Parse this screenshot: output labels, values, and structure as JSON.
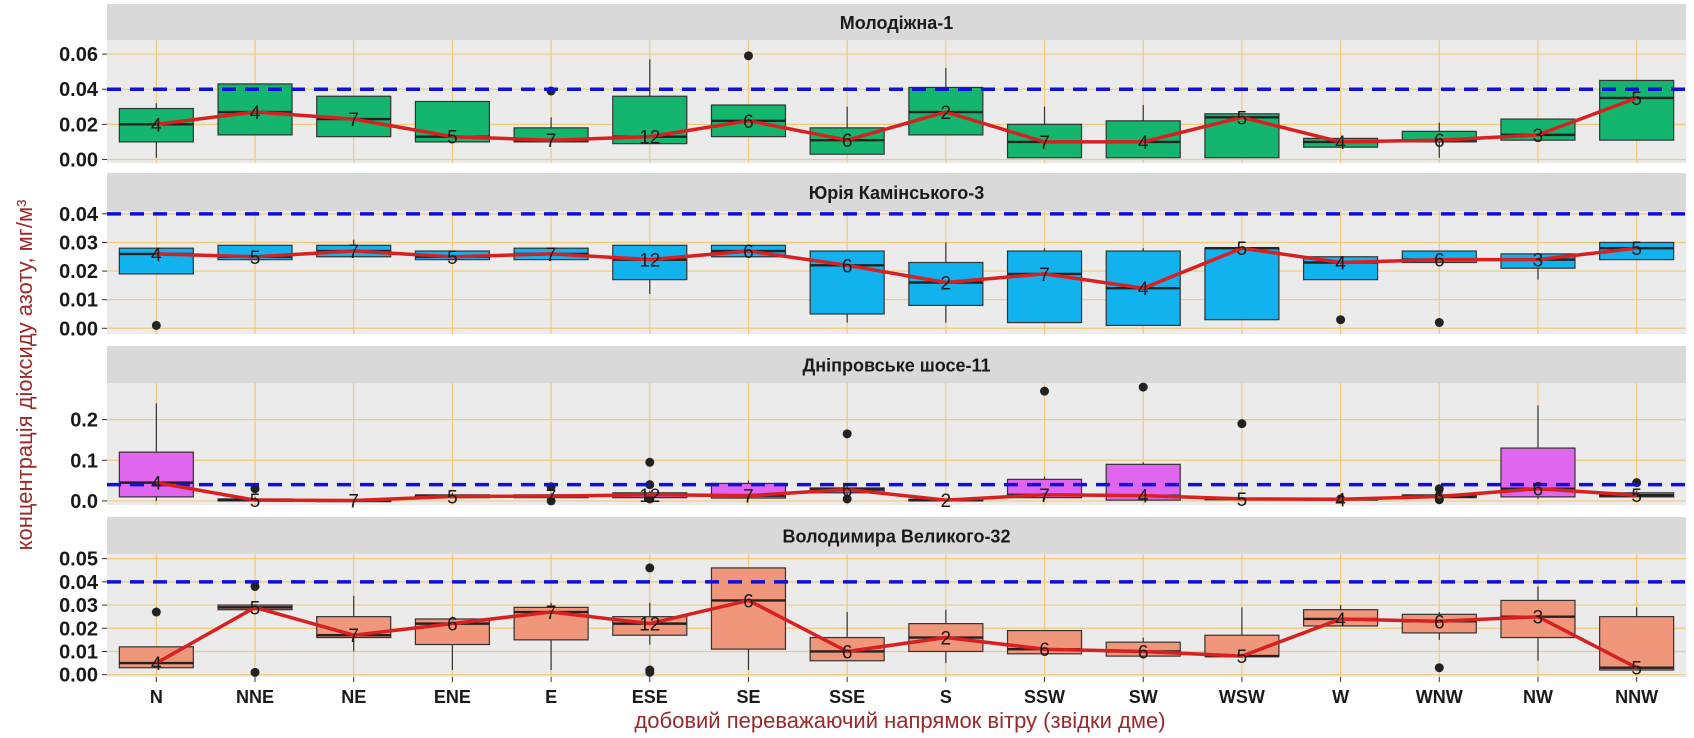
{
  "chart_data": {
    "type": "box",
    "ylabel": "концентрація діоксиду азоту, мг/м³",
    "xlabel": "добовий переважаючий напрямок вітру (звідки дме)",
    "categories": [
      "N",
      "NNE",
      "NE",
      "ENE",
      "E",
      "ESE",
      "SE",
      "SSE",
      "S",
      "SSW",
      "SW",
      "WSW",
      "W",
      "WNW",
      "NW",
      "NNW"
    ],
    "reference_line": 0.04,
    "colors": {
      "line": "#d92020",
      "reference": "#1010d8"
    },
    "panels": [
      {
        "title": "Молодіжна-1",
        "fill": "#13b56f",
        "ylim": [
          -0.002,
          0.068
        ],
        "yticks": [
          "0.00",
          "0.02",
          "0.04",
          "0.06"
        ],
        "counts": [
          "4",
          "4",
          "7",
          "5",
          "7",
          "12",
          "6",
          "6",
          "2",
          "7",
          "4",
          "5",
          "4",
          "6",
          "3",
          "5"
        ],
        "medians": [
          0.02,
          0.027,
          0.023,
          0.013,
          0.011,
          0.013,
          0.022,
          0.011,
          0.027,
          0.01,
          0.01,
          0.024,
          0.01,
          0.011,
          0.014,
          0.035
        ],
        "q1": [
          0.01,
          0.014,
          0.013,
          0.01,
          0.01,
          0.009,
          0.013,
          0.003,
          0.014,
          0.001,
          0.001,
          0.001,
          0.007,
          0.01,
          0.011,
          0.011
        ],
        "q3": [
          0.029,
          0.043,
          0.036,
          0.033,
          0.018,
          0.036,
          0.031,
          0.018,
          0.041,
          0.02,
          0.022,
          0.026,
          0.012,
          0.016,
          0.023,
          0.045
        ],
        "wlo": [
          0.001,
          0.014,
          0.013,
          0.01,
          0.01,
          0.009,
          0.013,
          0.003,
          0.014,
          0.001,
          0.001,
          0.001,
          0.007,
          0.001,
          0.011,
          0.011
        ],
        "whi": [
          0.032,
          0.043,
          0.036,
          0.033,
          0.024,
          0.057,
          0.031,
          0.03,
          0.052,
          0.03,
          0.031,
          0.026,
          0.012,
          0.021,
          0.023,
          0.045
        ],
        "outliers": [
          [],
          [],
          [],
          [],
          [
            0.039
          ],
          [],
          [
            0.059
          ],
          [],
          [],
          [],
          [],
          [],
          [],
          [],
          [],
          []
        ]
      },
      {
        "title": "Юрія Камінського-3",
        "fill": "#12b2ee",
        "ylim": [
          -0.002,
          0.041
        ],
        "yticks": [
          "0.00",
          "0.01",
          "0.02",
          "0.03",
          "0.04"
        ],
        "counts": [
          "4",
          "5",
          "7",
          "5",
          "7",
          "12",
          "6",
          "6",
          "2",
          "7",
          "4",
          "5",
          "4",
          "6",
          "3",
          "5"
        ],
        "medians": [
          0.026,
          0.025,
          0.027,
          0.025,
          0.026,
          0.024,
          0.027,
          0.022,
          0.016,
          0.019,
          0.014,
          0.028,
          0.023,
          0.024,
          0.024,
          0.028
        ],
        "q1": [
          0.019,
          0.024,
          0.025,
          0.024,
          0.024,
          0.017,
          0.025,
          0.005,
          0.008,
          0.002,
          0.001,
          0.003,
          0.017,
          0.023,
          0.021,
          0.024
        ],
        "q3": [
          0.028,
          0.029,
          0.029,
          0.027,
          0.028,
          0.029,
          0.029,
          0.027,
          0.023,
          0.027,
          0.027,
          0.028,
          0.025,
          0.027,
          0.026,
          0.03
        ],
        "wlo": [
          0.019,
          0.024,
          0.025,
          0.024,
          0.024,
          0.012,
          0.025,
          0.002,
          0.002,
          0.002,
          0.001,
          0.003,
          0.017,
          0.023,
          0.017,
          0.024
        ],
        "whi": [
          0.028,
          0.029,
          0.031,
          0.027,
          0.028,
          0.029,
          0.029,
          0.027,
          0.03,
          0.028,
          0.028,
          0.028,
          0.025,
          0.027,
          0.026,
          0.03
        ],
        "outliers": [
          [
            0.001
          ],
          [],
          [],
          [],
          [],
          [],
          [],
          [],
          [],
          [],
          [],
          [],
          [
            0.003
          ],
          [
            0.002
          ],
          [],
          []
        ]
      },
      {
        "title": "Дніпровське шосе-11",
        "fill": "#e066f0",
        "ylim": [
          -0.01,
          0.29
        ],
        "yticks": [
          "0.0",
          "0.1",
          "0.2"
        ],
        "counts": [
          "4",
          "5",
          "7",
          "5",
          "7",
          "12",
          "7",
          "6",
          "2",
          "7",
          "4",
          "5",
          "4",
          "6",
          "6",
          "5"
        ],
        "medians": [
          0.045,
          0.002,
          0.001,
          0.011,
          0.012,
          0.015,
          0.013,
          0.028,
          0.002,
          0.015,
          0.013,
          0.005,
          0.004,
          0.011,
          0.03,
          0.014
        ],
        "q1": [
          0.01,
          0.0,
          0.0,
          0.008,
          0.008,
          0.008,
          0.007,
          0.02,
          0.0,
          0.008,
          0.002,
          0.003,
          0.002,
          0.008,
          0.01,
          0.01
        ],
        "q3": [
          0.12,
          0.005,
          0.002,
          0.015,
          0.015,
          0.02,
          0.043,
          0.032,
          0.004,
          0.053,
          0.09,
          0.007,
          0.006,
          0.015,
          0.13,
          0.02
        ],
        "wlo": [
          0.0,
          0.0,
          0.0,
          0.008,
          0.008,
          0.005,
          0.005,
          0.01,
          0.0,
          0.003,
          0.002,
          0.003,
          0.002,
          0.005,
          0.005,
          0.01
        ],
        "whi": [
          0.24,
          0.01,
          0.004,
          0.02,
          0.02,
          0.025,
          0.05,
          0.04,
          0.006,
          0.06,
          0.095,
          0.008,
          0.008,
          0.02,
          0.235,
          0.025
        ],
        "outliers": [
          [],
          [
            0.03
          ],
          [],
          [],
          [
            0.0,
            0.035
          ],
          [
            0.095,
            0.04,
            0.005
          ],
          [],
          [
            0.165,
            0.005
          ],
          [],
          [
            0.27
          ],
          [
            0.28
          ],
          [
            0.19
          ],
          [
            0.005
          ],
          [
            0.03,
            0.01,
            0.003
          ],
          [],
          [
            0.045
          ]
        ]
      },
      {
        "title": "Володимира Великого-32",
        "fill": "#f0967a",
        "ylim": [
          -0.001,
          0.052
        ],
        "yticks": [
          "0.00",
          "0.01",
          "0.02",
          "0.03",
          "0.04",
          "0.05"
        ],
        "counts": [
          "4",
          "5",
          "7",
          "6",
          "7",
          "12",
          "6",
          "6",
          "2",
          "6",
          "6",
          "5",
          "4",
          "6",
          "3",
          "5"
        ],
        "medians": [
          0.005,
          0.029,
          0.017,
          0.022,
          0.027,
          0.022,
          0.032,
          0.01,
          0.016,
          0.011,
          0.01,
          0.008,
          0.024,
          0.023,
          0.025,
          0.003
        ],
        "q1": [
          0.003,
          0.028,
          0.016,
          0.013,
          0.015,
          0.017,
          0.011,
          0.006,
          0.01,
          0.009,
          0.008,
          0.008,
          0.021,
          0.018,
          0.016,
          0.002
        ],
        "q3": [
          0.012,
          0.03,
          0.025,
          0.024,
          0.029,
          0.025,
          0.046,
          0.016,
          0.022,
          0.019,
          0.014,
          0.017,
          0.028,
          0.026,
          0.032,
          0.025
        ],
        "wlo": [
          0.003,
          0.028,
          0.01,
          0.002,
          0.002,
          0.013,
          0.002,
          0.006,
          0.005,
          0.009,
          0.007,
          0.008,
          0.021,
          0.015,
          0.006,
          0.002
        ],
        "whi": [
          0.012,
          0.03,
          0.034,
          0.025,
          0.031,
          0.031,
          0.046,
          0.027,
          0.028,
          0.019,
          0.016,
          0.029,
          0.03,
          0.027,
          0.038,
          0.029
        ],
        "outliers": [
          [
            0.027
          ],
          [
            0.038,
            0.001
          ],
          [],
          [],
          [],
          [
            0.046,
            0.002,
            0.001
          ],
          [],
          [],
          [],
          [],
          [],
          [],
          [],
          [
            0.003
          ],
          [],
          []
        ]
      }
    ]
  }
}
